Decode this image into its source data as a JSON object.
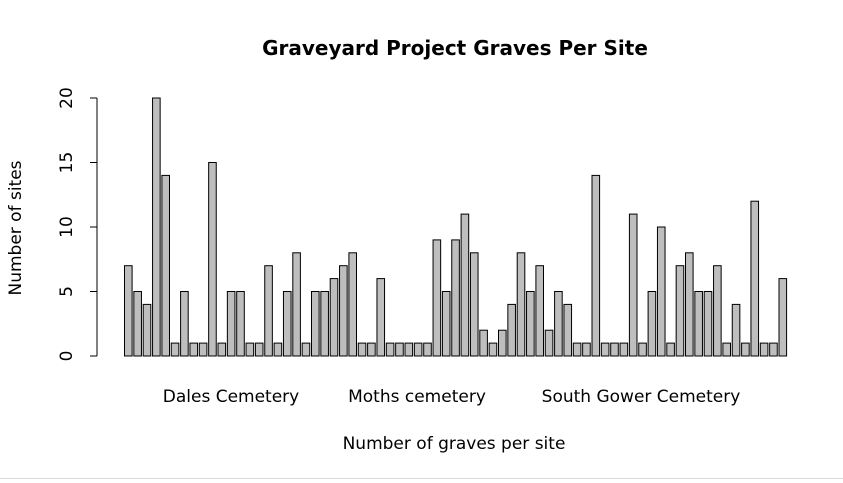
{
  "chart_data": {
    "type": "bar",
    "title": "Graveyard Project Graves Per Site",
    "xlabel": "Number of graves per site",
    "ylabel": "Number of sites",
    "ylim": [
      0,
      20
    ],
    "yticks": [
      0,
      5,
      10,
      15,
      20
    ],
    "category_labels": [
      "Dales Cemetery",
      "Moths cemetery",
      "South Gower Cemetery"
    ],
    "values": [
      7,
      5,
      4,
      20,
      14,
      1,
      5,
      1,
      1,
      15,
      1,
      5,
      5,
      1,
      1,
      7,
      1,
      5,
      8,
      1,
      5,
      5,
      6,
      7,
      8,
      1,
      1,
      6,
      1,
      1,
      1,
      1,
      1,
      9,
      5,
      9,
      11,
      8,
      2,
      1,
      2,
      4,
      8,
      5,
      7,
      2,
      5,
      4,
      1,
      1,
      14,
      1,
      1,
      1,
      11,
      1,
      5,
      10,
      1,
      7,
      8,
      5,
      5,
      7,
      1,
      4,
      1,
      12,
      1,
      1,
      6
    ],
    "bar_fill": "#bebebe",
    "bar_stroke": "#000000",
    "grid": false,
    "legend": "none"
  }
}
